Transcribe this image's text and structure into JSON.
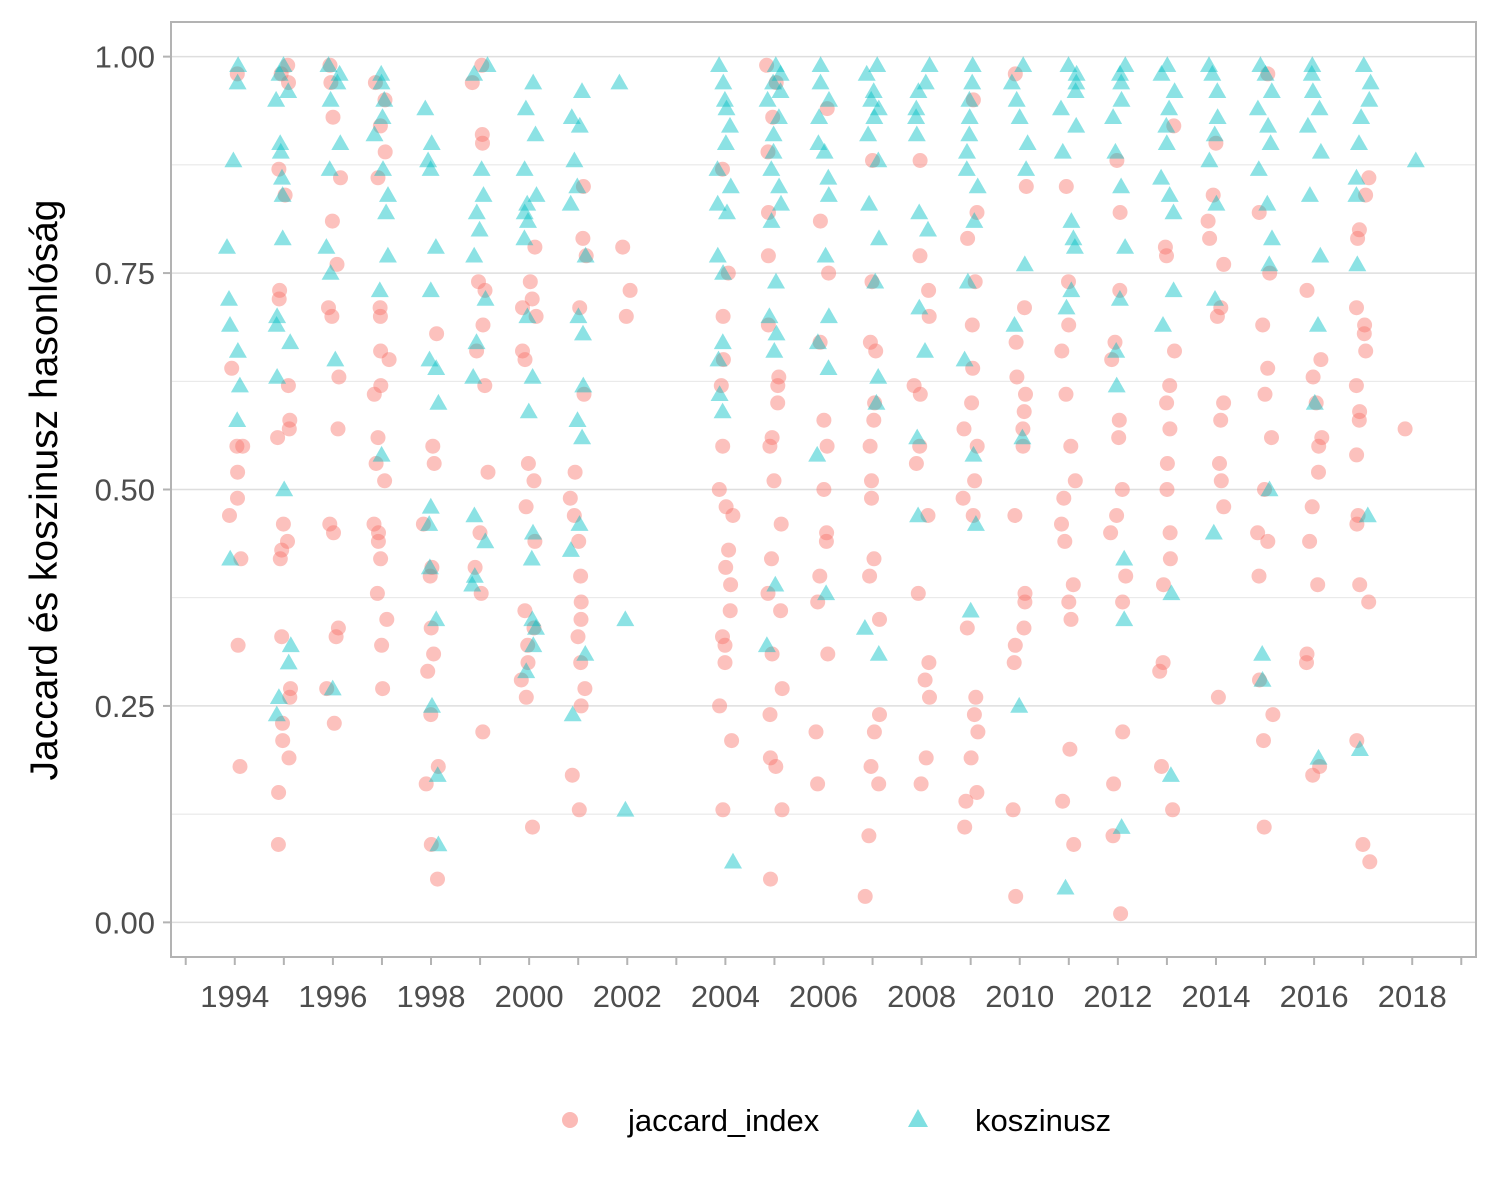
{
  "chart_data": {
    "type": "scatter",
    "title": "",
    "xlabel": "",
    "ylabel": "Jaccard és koszinusz hasonlóság",
    "xlim": [
      1992.7,
      2019.3
    ],
    "ylim": [
      -0.04,
      1.04
    ],
    "x_ticks": [
      "1994",
      "1996",
      "1998",
      "2000",
      "2002",
      "2004",
      "2006",
      "2008",
      "2010",
      "2012",
      "2014",
      "2016",
      "2018"
    ],
    "y_ticks": [
      "0.00",
      "0.25",
      "0.50",
      "0.75",
      "1.00"
    ],
    "grid": true,
    "legend_position": "bottom",
    "colors": {
      "jaccard_index": "#F8766D",
      "koszinusz": "#00BFC4"
    },
    "series": [
      {
        "name": "jaccard_index",
        "marker": "circle",
        "years": [
          1994,
          1995,
          1996,
          1997,
          1998,
          1999,
          2000,
          2001,
          2002,
          2004,
          2005,
          2006,
          2007,
          2008,
          2009,
          2010,
          2011,
          2012,
          2013,
          2014,
          2015,
          2016,
          2017,
          2018
        ],
        "values": [
          [
            0.98,
            0.64,
            0.55,
            0.55,
            0.52,
            0.49,
            0.47,
            0.42,
            0.32,
            0.18
          ],
          [
            0.99,
            0.98,
            0.97,
            0.87,
            0.84,
            0.73,
            0.72,
            0.62,
            0.58,
            0.57,
            0.56,
            0.46,
            0.44,
            0.43,
            0.42,
            0.33,
            0.27,
            0.26,
            0.23,
            0.21,
            0.19,
            0.15,
            0.09
          ],
          [
            0.99,
            0.97,
            0.93,
            0.86,
            0.81,
            0.76,
            0.71,
            0.7,
            0.63,
            0.57,
            0.46,
            0.45,
            0.34,
            0.33,
            0.27,
            0.23
          ],
          [
            0.97,
            0.95,
            0.92,
            0.89,
            0.86,
            0.71,
            0.7,
            0.66,
            0.65,
            0.62,
            0.61,
            0.56,
            0.53,
            0.51,
            0.46,
            0.45,
            0.44,
            0.42,
            0.38,
            0.35,
            0.32,
            0.27
          ],
          [
            0.68,
            0.55,
            0.53,
            0.46,
            0.41,
            0.4,
            0.34,
            0.31,
            0.29,
            0.24,
            0.18,
            0.16,
            0.09,
            0.05
          ],
          [
            0.99,
            0.97,
            0.91,
            0.9,
            0.74,
            0.73,
            0.69,
            0.66,
            0.62,
            0.52,
            0.45,
            0.41,
            0.38,
            0.22
          ],
          [
            0.78,
            0.74,
            0.72,
            0.71,
            0.7,
            0.66,
            0.65,
            0.53,
            0.51,
            0.48,
            0.44,
            0.36,
            0.34,
            0.32,
            0.3,
            0.28,
            0.26,
            0.11
          ],
          [
            0.85,
            0.79,
            0.77,
            0.71,
            0.61,
            0.52,
            0.49,
            0.47,
            0.44,
            0.4,
            0.37,
            0.35,
            0.33,
            0.3,
            0.27,
            0.25,
            0.17,
            0.13
          ],
          [
            0.78,
            0.73,
            0.7
          ],
          [
            0.87,
            0.75,
            0.7,
            0.65,
            0.62,
            0.55,
            0.5,
            0.48,
            0.47,
            0.43,
            0.41,
            0.39,
            0.36,
            0.33,
            0.32,
            0.3,
            0.25,
            0.21,
            0.13
          ],
          [
            0.99,
            0.97,
            0.93,
            0.89,
            0.82,
            0.77,
            0.69,
            0.63,
            0.62,
            0.6,
            0.56,
            0.55,
            0.51,
            0.46,
            0.42,
            0.38,
            0.36,
            0.31,
            0.27,
            0.24,
            0.19,
            0.18,
            0.13,
            0.05
          ],
          [
            0.94,
            0.81,
            0.75,
            0.67,
            0.58,
            0.55,
            0.5,
            0.45,
            0.44,
            0.4,
            0.37,
            0.31,
            0.22,
            0.16
          ],
          [
            0.88,
            0.74,
            0.67,
            0.66,
            0.6,
            0.58,
            0.55,
            0.51,
            0.49,
            0.42,
            0.4,
            0.35,
            0.24,
            0.22,
            0.18,
            0.16,
            0.1,
            0.03
          ],
          [
            0.88,
            0.77,
            0.73,
            0.7,
            0.62,
            0.61,
            0.55,
            0.53,
            0.47,
            0.38,
            0.3,
            0.28,
            0.26,
            0.19,
            0.16
          ],
          [
            0.95,
            0.82,
            0.79,
            0.74,
            0.69,
            0.64,
            0.6,
            0.57,
            0.55,
            0.51,
            0.49,
            0.47,
            0.34,
            0.26,
            0.24,
            0.22,
            0.19,
            0.15,
            0.14,
            0.11
          ],
          [
            0.98,
            0.85,
            0.71,
            0.67,
            0.63,
            0.61,
            0.59,
            0.57,
            0.55,
            0.47,
            0.38,
            0.37,
            0.34,
            0.32,
            0.3,
            0.13,
            0.03
          ],
          [
            0.85,
            0.74,
            0.69,
            0.66,
            0.61,
            0.55,
            0.51,
            0.49,
            0.46,
            0.44,
            0.39,
            0.37,
            0.35,
            0.2,
            0.14,
            0.09
          ],
          [
            0.88,
            0.82,
            0.73,
            0.67,
            0.65,
            0.58,
            0.56,
            0.5,
            0.47,
            0.45,
            0.4,
            0.37,
            0.22,
            0.16,
            0.1,
            0.01
          ],
          [
            0.92,
            0.78,
            0.77,
            0.66,
            0.62,
            0.6,
            0.57,
            0.53,
            0.5,
            0.45,
            0.42,
            0.39,
            0.3,
            0.29,
            0.18,
            0.13
          ],
          [
            0.9,
            0.84,
            0.81,
            0.79,
            0.76,
            0.71,
            0.7,
            0.6,
            0.58,
            0.53,
            0.51,
            0.48,
            0.26
          ],
          [
            0.98,
            0.82,
            0.75,
            0.69,
            0.64,
            0.61,
            0.56,
            0.5,
            0.45,
            0.44,
            0.4,
            0.28,
            0.24,
            0.21,
            0.11
          ],
          [
            0.73,
            0.65,
            0.63,
            0.6,
            0.56,
            0.55,
            0.52,
            0.48,
            0.44,
            0.39,
            0.31,
            0.3,
            0.18,
            0.17
          ],
          [
            0.86,
            0.84,
            0.8,
            0.79,
            0.71,
            0.69,
            0.68,
            0.66,
            0.62,
            0.59,
            0.58,
            0.54,
            0.47,
            0.46,
            0.39,
            0.37,
            0.21,
            0.09,
            0.07
          ],
          [
            0.57
          ]
        ]
      },
      {
        "name": "koszinusz",
        "marker": "triangle",
        "years": [
          1994,
          1995,
          1996,
          1997,
          1998,
          1999,
          2000,
          2001,
          2002,
          2004,
          2005,
          2006,
          2007,
          2008,
          2009,
          2010,
          2011,
          2012,
          2013,
          2014,
          2015,
          2016,
          2017,
          2018
        ],
        "values": [
          [
            0.99,
            0.97,
            0.88,
            0.78,
            0.72,
            0.69,
            0.66,
            0.62,
            0.58,
            0.42
          ],
          [
            0.99,
            0.98,
            0.96,
            0.95,
            0.9,
            0.89,
            0.86,
            0.84,
            0.79,
            0.7,
            0.69,
            0.67,
            0.63,
            0.5,
            0.32,
            0.3,
            0.26,
            0.24
          ],
          [
            0.99,
            0.98,
            0.97,
            0.95,
            0.9,
            0.87,
            0.78,
            0.75,
            0.65,
            0.27
          ],
          [
            0.98,
            0.97,
            0.95,
            0.93,
            0.91,
            0.87,
            0.84,
            0.82,
            0.77,
            0.73,
            0.54
          ],
          [
            0.94,
            0.9,
            0.88,
            0.87,
            0.78,
            0.73,
            0.65,
            0.64,
            0.6,
            0.48,
            0.46,
            0.41,
            0.35,
            0.25,
            0.17,
            0.09
          ],
          [
            0.99,
            0.98,
            0.87,
            0.84,
            0.82,
            0.8,
            0.77,
            0.72,
            0.67,
            0.63,
            0.47,
            0.44,
            0.4,
            0.39
          ],
          [
            0.97,
            0.94,
            0.91,
            0.87,
            0.84,
            0.83,
            0.82,
            0.81,
            0.79,
            0.7,
            0.63,
            0.59,
            0.45,
            0.42,
            0.35,
            0.34,
            0.32,
            0.29
          ],
          [
            0.96,
            0.93,
            0.92,
            0.88,
            0.85,
            0.83,
            0.77,
            0.7,
            0.68,
            0.62,
            0.58,
            0.56,
            0.46,
            0.43,
            0.31,
            0.24
          ],
          [
            0.97,
            0.35,
            0.13
          ],
          [
            0.99,
            0.97,
            0.95,
            0.94,
            0.92,
            0.9,
            0.87,
            0.85,
            0.83,
            0.82,
            0.77,
            0.75,
            0.67,
            0.65,
            0.61,
            0.59,
            0.07
          ],
          [
            0.99,
            0.98,
            0.97,
            0.96,
            0.95,
            0.93,
            0.91,
            0.89,
            0.87,
            0.85,
            0.83,
            0.81,
            0.74,
            0.7,
            0.68,
            0.66,
            0.39,
            0.32
          ],
          [
            0.99,
            0.97,
            0.95,
            0.93,
            0.9,
            0.89,
            0.86,
            0.84,
            0.77,
            0.7,
            0.67,
            0.64,
            0.54,
            0.38
          ],
          [
            0.99,
            0.98,
            0.96,
            0.95,
            0.94,
            0.93,
            0.91,
            0.88,
            0.83,
            0.79,
            0.74,
            0.63,
            0.6,
            0.34,
            0.31
          ],
          [
            0.99,
            0.97,
            0.96,
            0.94,
            0.93,
            0.91,
            0.82,
            0.8,
            0.71,
            0.66,
            0.56,
            0.47
          ],
          [
            0.99,
            0.97,
            0.95,
            0.93,
            0.91,
            0.89,
            0.87,
            0.85,
            0.81,
            0.74,
            0.65,
            0.54,
            0.46,
            0.36
          ],
          [
            0.99,
            0.97,
            0.95,
            0.93,
            0.9,
            0.87,
            0.76,
            0.69,
            0.56,
            0.25
          ],
          [
            0.99,
            0.98,
            0.97,
            0.96,
            0.94,
            0.92,
            0.89,
            0.81,
            0.79,
            0.78,
            0.73,
            0.71,
            0.04
          ],
          [
            0.99,
            0.98,
            0.97,
            0.95,
            0.93,
            0.89,
            0.85,
            0.78,
            0.72,
            0.66,
            0.62,
            0.42,
            0.35,
            0.11
          ],
          [
            0.99,
            0.98,
            0.96,
            0.94,
            0.92,
            0.9,
            0.86,
            0.84,
            0.82,
            0.73,
            0.69,
            0.38,
            0.17
          ],
          [
            0.99,
            0.98,
            0.96,
            0.93,
            0.91,
            0.88,
            0.83,
            0.72,
            0.45
          ],
          [
            0.99,
            0.98,
            0.96,
            0.94,
            0.92,
            0.9,
            0.87,
            0.83,
            0.79,
            0.76,
            0.5,
            0.31,
            0.28
          ],
          [
            0.99,
            0.98,
            0.96,
            0.94,
            0.92,
            0.89,
            0.84,
            0.77,
            0.69,
            0.6,
            0.19
          ],
          [
            0.99,
            0.97,
            0.95,
            0.93,
            0.9,
            0.86,
            0.84,
            0.76,
            0.47,
            0.2
          ],
          [
            0.88
          ]
        ]
      }
    ]
  }
}
